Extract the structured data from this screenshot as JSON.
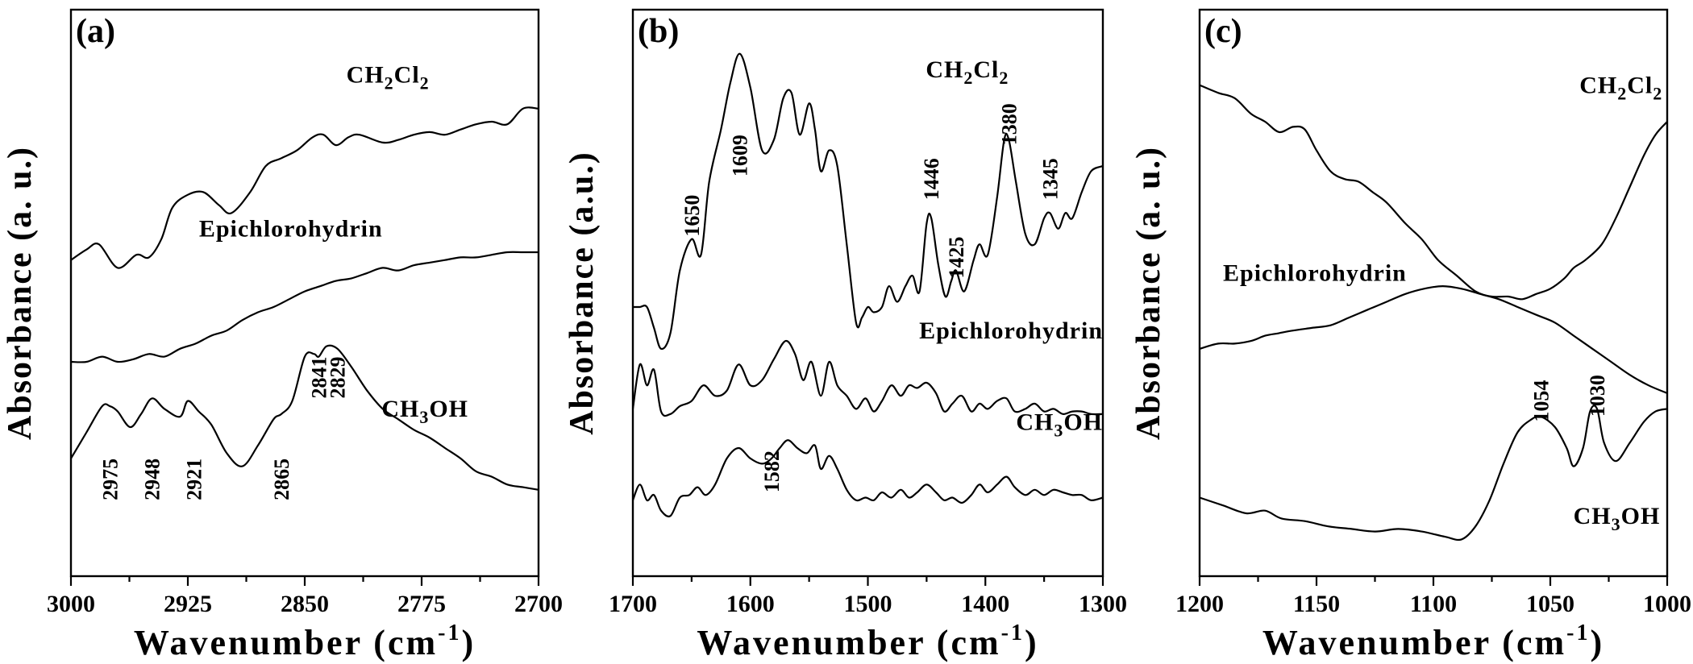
{
  "chart_data": [
    {
      "type": "line",
      "panel_label": "(a)",
      "xlabel": "Wavenumber (cm",
      "xlabel_sup": "-1",
      "xlabel_end": ")",
      "ylabel": "Absorbance (a. u.)",
      "xlim": [
        3000,
        2700
      ],
      "ylim": [
        0,
        10
      ],
      "xticks": [
        "3000",
        "2925",
        "2850",
        "2775",
        "2700"
      ],
      "xtick_values": [
        3000,
        2925,
        2850,
        2775,
        2700
      ],
      "series": [
        {
          "name": "CH2Cl2",
          "label_main": "CH",
          "label_sub1": "2",
          "label_mid": "Cl",
          "label_sub2": "2",
          "label_pos": [
            2770,
            9.3
          ],
          "x": [
            3000,
            2990,
            2982,
            2970,
            2958,
            2950,
            2942,
            2935,
            2925,
            2915,
            2905,
            2897,
            2885,
            2875,
            2865,
            2855,
            2845,
            2838,
            2830,
            2822,
            2815,
            2800,
            2790,
            2780,
            2770,
            2760,
            2750,
            2740,
            2730,
            2720,
            2710,
            2700
          ],
          "y": [
            5.9,
            6.1,
            6.2,
            5.75,
            6.0,
            5.95,
            6.3,
            6.9,
            7.15,
            7.2,
            6.95,
            6.8,
            7.2,
            7.7,
            7.85,
            8.0,
            8.25,
            8.3,
            8.1,
            8.25,
            8.3,
            8.15,
            8.2,
            8.3,
            8.35,
            8.3,
            8.4,
            8.5,
            8.55,
            8.5,
            8.8,
            8.8
          ]
        },
        {
          "name": "Epichlorohydrin",
          "label_main": "Epichlorohydrin",
          "label_pos": [
            2800,
            6.35
          ],
          "x": [
            3000,
            2990,
            2980,
            2970,
            2960,
            2950,
            2940,
            2930,
            2920,
            2910,
            2900,
            2890,
            2880,
            2870,
            2860,
            2850,
            2840,
            2830,
            2820,
            2810,
            2800,
            2790,
            2780,
            2770,
            2760,
            2750,
            2740,
            2730,
            2720,
            2710,
            2700
          ],
          "y": [
            3.95,
            3.95,
            4.05,
            3.95,
            4.0,
            4.1,
            4.05,
            4.2,
            4.3,
            4.45,
            4.55,
            4.75,
            4.9,
            5.0,
            5.15,
            5.3,
            5.4,
            5.5,
            5.55,
            5.65,
            5.75,
            5.7,
            5.8,
            5.85,
            5.9,
            5.95,
            5.95,
            6.0,
            6.05,
            6.05,
            6.05
          ]
        },
        {
          "name": "CH3OH",
          "label_main": "CH",
          "label_sub1": "3",
          "label_mid": "OH",
          "label_pos": [
            2745,
            2.9
          ],
          "x": [
            3000,
            2990,
            2980,
            2975,
            2970,
            2962,
            2955,
            2948,
            2940,
            2930,
            2925,
            2918,
            2910,
            2900,
            2890,
            2880,
            2870,
            2865,
            2858,
            2850,
            2844,
            2841,
            2836,
            2829,
            2820,
            2810,
            2800,
            2790,
            2780,
            2770,
            2760,
            2750,
            2740,
            2730,
            2720,
            2710,
            2700
          ],
          "y": [
            2.1,
            2.6,
            3.1,
            3.1,
            3.0,
            2.7,
            2.95,
            3.25,
            3.05,
            2.9,
            3.2,
            3.0,
            2.75,
            2.2,
            1.95,
            2.35,
            2.85,
            2.95,
            3.2,
            4.05,
            4.1,
            4.05,
            4.25,
            4.2,
            3.85,
            3.4,
            3.05,
            2.85,
            2.65,
            2.5,
            2.3,
            2.1,
            1.85,
            1.75,
            1.6,
            1.55,
            1.5
          ]
        }
      ],
      "peak_labels": [
        {
          "text": "2975",
          "x": 2975,
          "y": 1.7
        },
        {
          "text": "2948",
          "x": 2948,
          "y": 1.7
        },
        {
          "text": "2921",
          "x": 2921,
          "y": 1.7
        },
        {
          "text": "2865",
          "x": 2865,
          "y": 1.7
        },
        {
          "text": "2841",
          "x": 2841,
          "y": 3.65
        },
        {
          "text": "2829",
          "x": 2829,
          "y": 3.65
        }
      ]
    },
    {
      "type": "line",
      "panel_label": "(b)",
      "xlabel": "Wavenumber (cm",
      "xlabel_sup": "-1",
      "xlabel_end": ")",
      "ylabel": "Absorbance (a.u.)",
      "xlim": [
        1700,
        1300
      ],
      "ylim": [
        0,
        10
      ],
      "xticks": [
        "1700",
        "1600",
        "1500",
        "1400",
        "1300"
      ],
      "xtick_values": [
        1700,
        1600,
        1500,
        1400,
        1300
      ],
      "series": [
        {
          "name": "CH2Cl2",
          "label_main": "CH",
          "label_sub1": "2",
          "label_mid": "Cl",
          "label_sub2": "2",
          "label_pos": [
            1380,
            9.4
          ],
          "x": [
            1700,
            1694,
            1688,
            1682,
            1676,
            1668,
            1660,
            1650,
            1642,
            1635,
            1625,
            1617,
            1609,
            1600,
            1590,
            1580,
            1572,
            1565,
            1558,
            1550,
            1545,
            1540,
            1533,
            1526,
            1518,
            1510,
            1505,
            1500,
            1495,
            1488,
            1482,
            1475,
            1468,
            1462,
            1456,
            1450,
            1446,
            1440,
            1434,
            1429,
            1425,
            1418,
            1410,
            1405,
            1398,
            1390,
            1384,
            1380,
            1374,
            1366,
            1358,
            1350,
            1345,
            1338,
            1332,
            1326,
            1318,
            1310,
            1300
          ],
          "y": [
            5.0,
            5.0,
            5.0,
            4.6,
            4.2,
            4.5,
            5.7,
            6.3,
            6.0,
            7.4,
            8.4,
            9.3,
            9.85,
            9.2,
            8.0,
            8.2,
            9.0,
            9.1,
            8.3,
            8.9,
            8.4,
            7.6,
            8.0,
            7.7,
            6.2,
            4.7,
            4.8,
            5.0,
            4.9,
            5.0,
            5.4,
            5.1,
            5.4,
            5.6,
            5.3,
            6.6,
            6.7,
            5.8,
            5.2,
            5.5,
            5.7,
            5.3,
            5.9,
            6.2,
            6.0,
            7.1,
            8.2,
            8.2,
            7.4,
            6.4,
            6.2,
            6.7,
            6.8,
            6.5,
            6.8,
            6.7,
            7.2,
            7.6,
            7.7
          ]
        },
        {
          "name": "Epichlorohydrin",
          "label_main": "Epichlorohydrin",
          "label_pos": [
            1300,
            4.4
          ],
          "x": [
            1700,
            1694,
            1688,
            1682,
            1676,
            1668,
            1660,
            1650,
            1640,
            1630,
            1620,
            1610,
            1600,
            1590,
            1580,
            1570,
            1562,
            1555,
            1548,
            1540,
            1533,
            1526,
            1518,
            1510,
            1502,
            1495,
            1488,
            1480,
            1472,
            1465,
            1458,
            1450,
            1442,
            1435,
            1428,
            1420,
            1412,
            1405,
            1398,
            1390,
            1382,
            1375,
            1366,
            1358,
            1350,
            1342,
            1334,
            1326,
            1318,
            1310,
            1300
          ],
          "y": [
            3.05,
            3.9,
            3.5,
            3.8,
            3.0,
            2.95,
            3.1,
            3.2,
            3.5,
            3.3,
            3.4,
            3.9,
            3.5,
            3.6,
            4.0,
            4.35,
            4.1,
            3.6,
            3.95,
            3.3,
            3.95,
            3.5,
            3.3,
            3.05,
            3.25,
            3.0,
            3.2,
            3.5,
            3.3,
            3.5,
            3.45,
            3.55,
            3.35,
            3.0,
            3.15,
            3.3,
            3.0,
            3.15,
            3.05,
            3.2,
            3.25,
            3.0,
            3.05,
            3.15,
            3.0,
            3.05,
            2.95,
            3.0,
            3.0,
            2.95,
            2.95
          ]
        },
        {
          "name": "CH3OH",
          "label_main": "CH",
          "label_sub1": "3",
          "label_mid": "OH",
          "label_pos": [
            1300,
            2.65
          ],
          "x": [
            1700,
            1694,
            1688,
            1682,
            1676,
            1668,
            1660,
            1652,
            1645,
            1638,
            1630,
            1620,
            1610,
            1600,
            1590,
            1582,
            1575,
            1568,
            1560,
            1552,
            1545,
            1540,
            1533,
            1526,
            1518,
            1510,
            1502,
            1495,
            1488,
            1480,
            1472,
            1465,
            1458,
            1450,
            1442,
            1435,
            1428,
            1420,
            1412,
            1405,
            1398,
            1390,
            1382,
            1375,
            1366,
            1358,
            1350,
            1342,
            1334,
            1326,
            1318,
            1310,
            1300
          ],
          "y": [
            1.3,
            1.6,
            1.3,
            1.4,
            1.1,
            1.0,
            1.35,
            1.4,
            1.55,
            1.4,
            1.6,
            2.1,
            2.3,
            2.1,
            2.0,
            2.1,
            2.3,
            2.45,
            2.3,
            2.2,
            2.35,
            1.9,
            2.15,
            1.9,
            1.5,
            1.3,
            1.35,
            1.3,
            1.45,
            1.35,
            1.5,
            1.35,
            1.45,
            1.6,
            1.45,
            1.3,
            1.35,
            1.25,
            1.4,
            1.6,
            1.45,
            1.6,
            1.75,
            1.55,
            1.4,
            1.5,
            1.4,
            1.5,
            1.45,
            1.4,
            1.4,
            1.3,
            1.35
          ]
        }
      ],
      "peak_labels": [
        {
          "text": "1650",
          "x": 1650,
          "y": 6.75
        },
        {
          "text": "1609",
          "x": 1609,
          "y": 7.9
        },
        {
          "text": "1582",
          "x": 1582,
          "y": 1.85
        },
        {
          "text": "1446",
          "x": 1446,
          "y": 7.45
        },
        {
          "text": "1425",
          "x": 1425,
          "y": 5.95
        },
        {
          "text": "1380",
          "x": 1380,
          "y": 8.5
        },
        {
          "text": "1345",
          "x": 1345,
          "y": 7.45
        }
      ]
    },
    {
      "type": "line",
      "panel_label": "(c)",
      "xlabel": "Wavenumber (cm",
      "xlabel_sup": "-1",
      "xlabel_end": ")",
      "ylabel": "Absorbance (a. u.)",
      "xlim": [
        1200,
        1000
      ],
      "ylim": [
        0,
        10
      ],
      "xticks": [
        "1200",
        "1150",
        "1100",
        "1050",
        "1000"
      ],
      "xtick_values": [
        1200,
        1150,
        1100,
        1050,
        1000
      ],
      "series": [
        {
          "name": "CH2Cl2",
          "label_main": "CH",
          "label_sub1": "2",
          "label_mid": "Cl",
          "label_sub2": "2",
          "label_pos": [
            1002,
            9.1
          ],
          "x": [
            1200,
            1192,
            1185,
            1178,
            1172,
            1166,
            1160,
            1155,
            1150,
            1144,
            1138,
            1132,
            1126,
            1120,
            1112,
            1105,
            1098,
            1090,
            1082,
            1075,
            1068,
            1062,
            1056,
            1050,
            1044,
            1040,
            1035,
            1028,
            1022,
            1016,
            1010,
            1005,
            1000
          ],
          "y": [
            9.25,
            9.1,
            9.0,
            8.7,
            8.55,
            8.35,
            8.45,
            8.4,
            8.0,
            7.6,
            7.45,
            7.4,
            7.2,
            7.0,
            6.6,
            6.3,
            5.9,
            5.6,
            5.3,
            5.2,
            5.2,
            5.15,
            5.25,
            5.35,
            5.55,
            5.75,
            5.9,
            6.2,
            6.7,
            7.3,
            7.9,
            8.3,
            8.55
          ]
        },
        {
          "name": "Epichlorohydrin",
          "label_main": "Epichlorohydrin",
          "label_pos": [
            1190,
            5.5
          ],
          "x": [
            1200,
            1192,
            1185,
            1178,
            1172,
            1166,
            1160,
            1152,
            1144,
            1136,
            1128,
            1120,
            1112,
            1104,
            1096,
            1088,
            1080,
            1072,
            1064,
            1056,
            1048,
            1040,
            1032,
            1024,
            1016,
            1008,
            1000
          ],
          "y": [
            4.2,
            4.3,
            4.3,
            4.35,
            4.45,
            4.5,
            4.55,
            4.6,
            4.65,
            4.8,
            4.95,
            5.1,
            5.25,
            5.35,
            5.4,
            5.35,
            5.25,
            5.15,
            5.0,
            4.85,
            4.7,
            4.45,
            4.2,
            3.95,
            3.7,
            3.5,
            3.35
          ]
        },
        {
          "name": "CH3OH",
          "label_main": "CH",
          "label_sub1": "3",
          "label_mid": "OH",
          "label_pos": [
            1003,
            0.85
          ],
          "x": [
            1200,
            1190,
            1180,
            1172,
            1165,
            1155,
            1145,
            1135,
            1125,
            1115,
            1105,
            1095,
            1088,
            1082,
            1076,
            1070,
            1064,
            1058,
            1054,
            1048,
            1043,
            1040,
            1036,
            1033,
            1030,
            1027,
            1022,
            1016,
            1010,
            1005,
            1000
          ],
          "y": [
            1.35,
            1.2,
            1.05,
            1.1,
            0.95,
            0.9,
            0.8,
            0.75,
            0.7,
            0.75,
            0.7,
            0.6,
            0.55,
            0.8,
            1.3,
            2.0,
            2.6,
            2.85,
            2.9,
            2.7,
            2.3,
            1.95,
            2.3,
            3.0,
            3.05,
            2.4,
            2.05,
            2.4,
            2.8,
            3.0,
            3.05
          ]
        }
      ],
      "peak_labels": [
        {
          "text": "1054",
          "x": 1054,
          "y": 3.2
        },
        {
          "text": "1030",
          "x": 1030,
          "y": 3.3
        }
      ]
    }
  ]
}
